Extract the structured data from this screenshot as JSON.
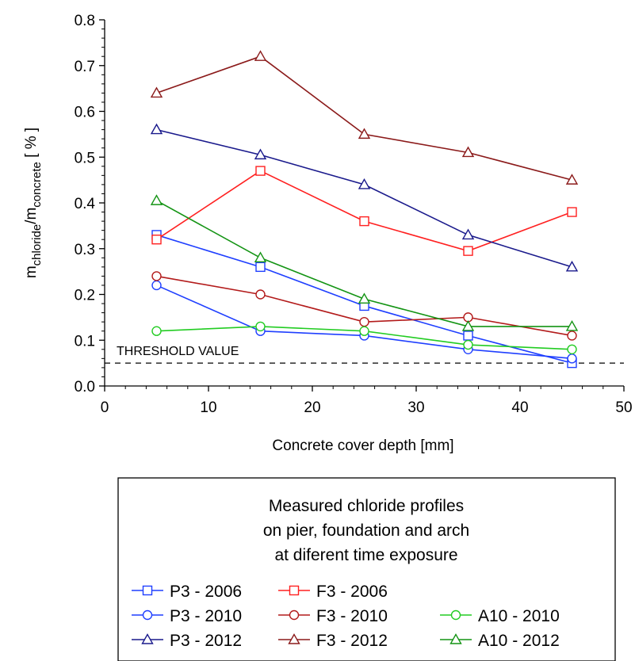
{
  "chart_data": {
    "type": "line",
    "xlabel": "Concrete cover depth [mm]",
    "ylabel": {
      "prefix": "m",
      "sub1": "chloride",
      "slash": "/m",
      "sub2": "concrete",
      "suffix": " [ % ]"
    },
    "xlim": [
      0,
      50
    ],
    "ylim": [
      0,
      0.8
    ],
    "x_ticks": [
      "0",
      "10",
      "20",
      "30",
      "40",
      "50"
    ],
    "y_ticks": [
      "0.0",
      "0.1",
      "0.2",
      "0.3",
      "0.4",
      "0.5",
      "0.6",
      "0.7",
      "0.8"
    ],
    "grid": false,
    "x": [
      5,
      15,
      25,
      35,
      45
    ],
    "series": [
      {
        "name": "P3 - 2006",
        "color": "#1f3fff",
        "marker": "square",
        "values": [
          0.33,
          0.26,
          0.175,
          0.11,
          0.05
        ]
      },
      {
        "name": "F3 - 2006",
        "color": "#ff2020",
        "marker": "square",
        "values": [
          0.32,
          0.47,
          0.36,
          0.295,
          0.38
        ]
      },
      {
        "name": "P3 - 2010",
        "color": "#1f3fff",
        "marker": "circle",
        "values": [
          0.22,
          0.12,
          0.11,
          0.08,
          0.06
        ]
      },
      {
        "name": "F3 - 2010",
        "color": "#b31b1b",
        "marker": "circle",
        "values": [
          0.24,
          0.2,
          0.14,
          0.15,
          0.11
        ]
      },
      {
        "name": "A10 - 2010",
        "color": "#22cc22",
        "marker": "circle",
        "values": [
          0.12,
          0.13,
          0.12,
          0.09,
          0.08
        ]
      },
      {
        "name": "P3 - 2012",
        "color": "#1a1a8c",
        "marker": "triangle",
        "values": [
          0.56,
          0.505,
          0.44,
          0.33,
          0.26
        ]
      },
      {
        "name": "F3 - 2012",
        "color": "#8b1a1a",
        "marker": "triangle",
        "values": [
          0.64,
          0.72,
          0.55,
          0.51,
          0.45
        ]
      },
      {
        "name": "A10 - 2012",
        "color": "#149414",
        "marker": "triangle",
        "values": [
          0.405,
          0.28,
          0.19,
          0.13,
          0.13
        ]
      }
    ],
    "threshold": {
      "label": "THRESHOLD VALUE",
      "value": 0.05
    },
    "legend": {
      "placement": "below plot",
      "title_lines": [
        "Measured chloride profiles",
        "on pier, foundation and arch",
        "at diferent time exposure"
      ]
    }
  }
}
